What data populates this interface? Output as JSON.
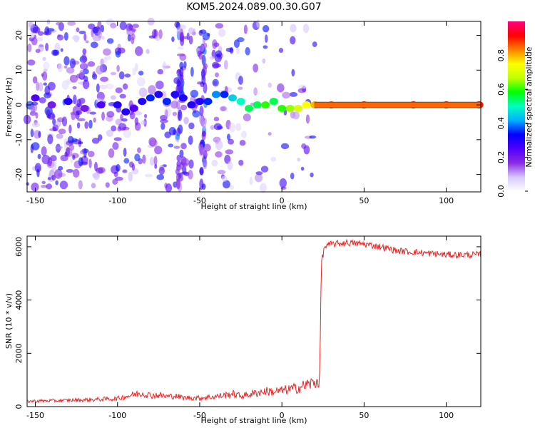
{
  "title": "KOM5.2024.089.00.30.G07",
  "chart_data": [
    {
      "type": "heatmap",
      "title": "",
      "xlabel": "Height of straight line (km)",
      "ylabel": "Frequency (Hz)",
      "xlim": [
        -155,
        121
      ],
      "ylim": [
        -25,
        24
      ],
      "xticks": [
        -150,
        -100,
        -50,
        0,
        50,
        100
      ],
      "yticks": [
        -20,
        -10,
        0,
        10,
        20
      ],
      "colorbar": {
        "label": "Normalized spectral amplitude",
        "range": [
          0,
          1
        ],
        "ticks": [
          "0.0",
          "0.2",
          "0.4",
          "0.6",
          "0.8"
        ],
        "colors": [
          "#ffffff",
          "#d8c8ff",
          "#8a2be2",
          "#5000ff",
          "#0000ff",
          "#00b0ff",
          "#00ffc0",
          "#00ff00",
          "#c0ff00",
          "#ffff00",
          "#ff8000",
          "#ff0000",
          "#ff0080"
        ]
      },
      "peak_ridge": {
        "x": [
          -150,
          -140,
          -130,
          -120,
          -110,
          -100,
          -95,
          -90,
          -85,
          -80,
          -75,
          -70,
          -65,
          -60,
          -55,
          -50,
          -45,
          -40,
          -35,
          -30,
          -25,
          -20,
          -15,
          -10,
          -5,
          0,
          5,
          10,
          15,
          20,
          30,
          50,
          80,
          100,
          120
        ],
        "y": [
          2,
          0,
          1,
          -1,
          0,
          0,
          -2,
          -1,
          1,
          2,
          3,
          1,
          3,
          2,
          0,
          1,
          1,
          3,
          3,
          2,
          1,
          -1,
          0,
          0,
          1,
          -1,
          -1,
          -1,
          0,
          0,
          0,
          0,
          0,
          0,
          0
        ],
        "amplitude": [
          0.25,
          0.2,
          0.3,
          0.2,
          0.25,
          0.3,
          0.3,
          0.25,
          0.3,
          0.35,
          0.3,
          0.35,
          0.3,
          0.3,
          0.3,
          0.3,
          0.35,
          0.4,
          0.35,
          0.45,
          0.5,
          0.55,
          0.55,
          0.6,
          0.55,
          0.6,
          0.65,
          0.7,
          0.75,
          0.8,
          0.85,
          0.88,
          0.9,
          0.9,
          0.9
        ]
      }
    },
    {
      "type": "line",
      "title": "",
      "xlabel": "Height of straight line (km)",
      "ylabel": "SNR (10 * v/v)",
      "xlim": [
        -155,
        121
      ],
      "ylim": [
        0,
        6400
      ],
      "xticks": [
        -150,
        -100,
        -50,
        0,
        50,
        100
      ],
      "yticks": [
        0,
        2000,
        4000,
        6000
      ],
      "line_color": "#ee2222",
      "series": [
        {
          "x": [
            -155,
            -140,
            -120,
            -100,
            -95,
            -90,
            -85,
            -80,
            -75,
            -70,
            -65,
            -60,
            -55,
            -50,
            -45,
            -40,
            -35,
            -30,
            -25,
            -20,
            -15,
            -10,
            -5,
            0,
            5,
            10,
            15,
            20,
            23,
            24,
            26,
            30,
            40,
            50,
            60,
            70,
            80,
            90,
            100,
            110,
            121
          ],
          "y": [
            200,
            220,
            250,
            300,
            380,
            450,
            500,
            420,
            430,
            380,
            400,
            330,
            330,
            320,
            350,
            380,
            420,
            480,
            400,
            450,
            520,
            580,
            550,
            600,
            650,
            700,
            820,
            900,
            1000,
            5400,
            6000,
            6100,
            6150,
            6100,
            6000,
            5850,
            5800,
            5750,
            5700,
            5700,
            5700
          ]
        }
      ]
    }
  ]
}
